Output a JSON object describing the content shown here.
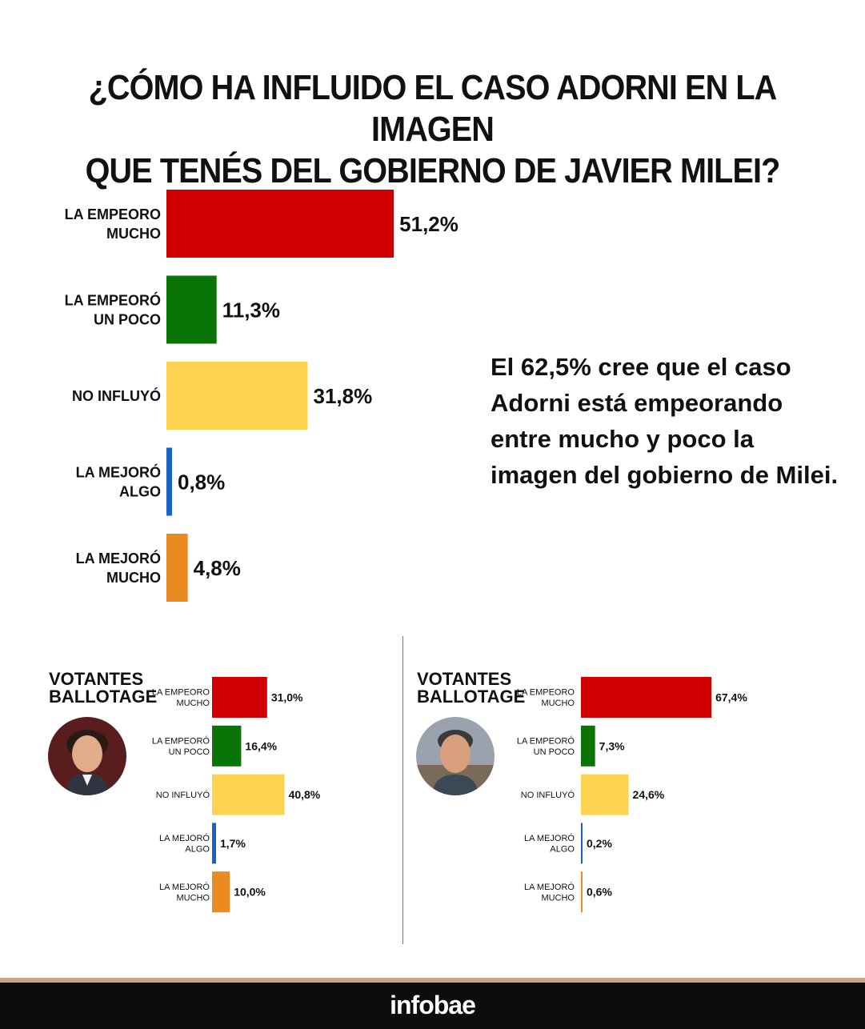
{
  "title_lines": [
    "¿CÓMO HA INFLUIDO EL CASO ADORNI EN LA IMAGEN",
    "QUE TENÉS DEL GOBIERNO DE JAVIER MILEI?"
  ],
  "note_lines": [
    "El 62,5% cree que el caso",
    "Adorni está empeorando",
    "entre mucho y poco la",
    "imagen del gobierno de Milei."
  ],
  "colors": {
    "empeoro_mucho": "#d10000",
    "empeoro_poco": "#0a7406",
    "no_influyo": "#fdd44f",
    "mejoro_algo": "#1a61c6",
    "mejoro_mucho": "#ec8a22"
  },
  "panels": {
    "left": {
      "title_lines": [
        "VOTANTES",
        "BALLOTAGE"
      ],
      "avatar_icon": "person-avatar-icon"
    },
    "right": {
      "title_lines": [
        "VOTANTES",
        "BALLOTAGE"
      ],
      "avatar_icon": "person-avatar-icon"
    }
  },
  "footer": {
    "brand": "infobae"
  },
  "chart_data": [
    {
      "type": "bar",
      "orientation": "horizontal",
      "categories": [
        [
          "LA EMPEORO",
          "MUCHO"
        ],
        [
          "LA EMPEORÓ",
          "UN POCO"
        ],
        [
          "NO INFLUYÓ"
        ],
        [
          "LA MEJORÓ",
          "ALGO"
        ],
        [
          "LA MEJORÓ",
          "MUCHO"
        ]
      ],
      "values": [
        51.2,
        11.3,
        31.8,
        0.8,
        4.8
      ],
      "labels": [
        "51,2%",
        "11,3%",
        "31,8%",
        "0,8%",
        "4,8%"
      ]
    },
    {
      "type": "bar",
      "orientation": "horizontal",
      "categories": [
        [
          "LA EMPEORO",
          "MUCHO"
        ],
        [
          "LA EMPEORÓ",
          "UN POCO"
        ],
        [
          "NO INFLUYÓ"
        ],
        [
          "LA MEJORÓ",
          "ALGO"
        ],
        [
          "LA MEJORÓ",
          "MUCHO"
        ]
      ],
      "values": [
        31.0,
        16.4,
        40.8,
        1.7,
        10.0
      ],
      "labels": [
        "31,0%",
        "16,4%",
        "40,8%",
        "1,7%",
        "10,0%"
      ]
    },
    {
      "type": "bar",
      "orientation": "horizontal",
      "categories": [
        [
          "LA EMPEORO",
          "MUCHO"
        ],
        [
          "LA EMPEORÓ",
          "UN POCO"
        ],
        [
          "NO INFLUYÓ"
        ],
        [
          "LA MEJORÓ",
          "ALGO"
        ],
        [
          "LA MEJORÓ",
          "MUCHO"
        ]
      ],
      "values": [
        67.4,
        7.3,
        24.6,
        0.2,
        0.6
      ],
      "labels": [
        "67,4%",
        "7,3%",
        "24,6%",
        "0,2%",
        "0,6%"
      ]
    }
  ]
}
